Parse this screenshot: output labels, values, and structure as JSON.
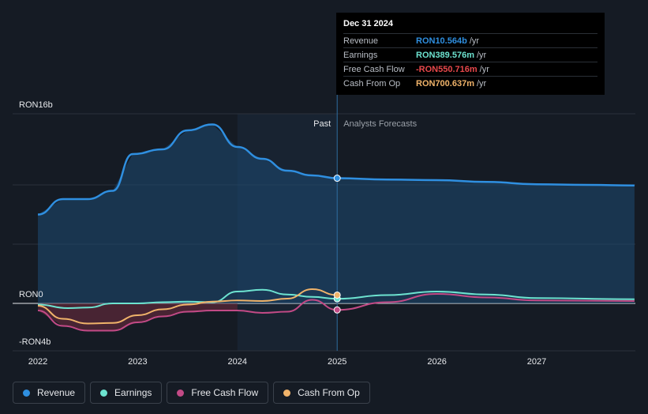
{
  "chart_data": {
    "type": "area",
    "x_axis": {
      "ticks": [
        "2022",
        "2023",
        "2024",
        "2025",
        "2026",
        "2027"
      ],
      "range": [
        2021.78,
        2027.98
      ]
    },
    "y_axis": {
      "ticks": [
        {
          "value": 16,
          "label": "RON16b"
        },
        {
          "value": 0,
          "label": "RON0"
        },
        {
          "value": -4,
          "label": "-RON4b"
        }
      ],
      "range": [
        -4,
        16
      ],
      "unit": "RON b"
    },
    "divider": {
      "x": 2025.0,
      "past_label": "Past",
      "forecast_label": "Analysts Forecasts"
    },
    "highlight_start": 2024.0,
    "series": [
      {
        "name": "Revenue",
        "color": "#2f8fe0",
        "points": [
          [
            2022.0,
            7.5
          ],
          [
            2022.25,
            8.8
          ],
          [
            2022.5,
            8.8
          ],
          [
            2022.75,
            9.5
          ],
          [
            2022.95,
            12.6
          ],
          [
            2023.25,
            13.0
          ],
          [
            2023.5,
            14.6
          ],
          [
            2023.75,
            15.1
          ],
          [
            2024.0,
            13.2
          ],
          [
            2024.25,
            12.2
          ],
          [
            2024.5,
            11.2
          ],
          [
            2024.75,
            10.8
          ],
          [
            2025.0,
            10.564
          ],
          [
            2025.5,
            10.45
          ],
          [
            2026.0,
            10.4
          ],
          [
            2026.5,
            10.25
          ],
          [
            2027.0,
            10.05
          ],
          [
            2027.5,
            10.0
          ],
          [
            2027.98,
            9.95
          ]
        ]
      },
      {
        "name": "Earnings",
        "color": "#6de3d0",
        "points": [
          [
            2022.0,
            -0.1
          ],
          [
            2022.3,
            -0.4
          ],
          [
            2022.5,
            -0.35
          ],
          [
            2022.75,
            0.0
          ],
          [
            2023.0,
            0.0
          ],
          [
            2023.25,
            0.1
          ],
          [
            2023.5,
            0.15
          ],
          [
            2023.75,
            0.1
          ],
          [
            2024.0,
            1.0
          ],
          [
            2024.25,
            1.15
          ],
          [
            2024.5,
            0.75
          ],
          [
            2024.75,
            0.55
          ],
          [
            2025.0,
            0.39
          ],
          [
            2025.5,
            0.7
          ],
          [
            2026.0,
            1.0
          ],
          [
            2026.5,
            0.75
          ],
          [
            2027.0,
            0.45
          ],
          [
            2027.98,
            0.35
          ]
        ]
      },
      {
        "name": "Free Cash Flow",
        "color": "#c24a86",
        "points": [
          [
            2022.0,
            -0.6
          ],
          [
            2022.25,
            -1.9
          ],
          [
            2022.5,
            -2.3
          ],
          [
            2022.75,
            -2.3
          ],
          [
            2023.0,
            -1.6
          ],
          [
            2023.25,
            -1.1
          ],
          [
            2023.5,
            -0.7
          ],
          [
            2023.75,
            -0.6
          ],
          [
            2024.0,
            -0.6
          ],
          [
            2024.25,
            -0.8
          ],
          [
            2024.5,
            -0.7
          ],
          [
            2024.75,
            0.3
          ],
          [
            2025.0,
            -0.551
          ],
          [
            2025.5,
            0.1
          ],
          [
            2026.0,
            0.8
          ],
          [
            2026.5,
            0.5
          ],
          [
            2027.0,
            0.25
          ],
          [
            2027.98,
            0.2
          ]
        ]
      },
      {
        "name": "Cash From Op",
        "color": "#f0b36a",
        "points": [
          [
            2022.0,
            -0.2
          ],
          [
            2022.25,
            -1.3
          ],
          [
            2022.5,
            -1.7
          ],
          [
            2022.75,
            -1.65
          ],
          [
            2023.0,
            -1.0
          ],
          [
            2023.25,
            -0.5
          ],
          [
            2023.5,
            -0.1
          ],
          [
            2023.75,
            0.15
          ],
          [
            2024.0,
            0.25
          ],
          [
            2024.25,
            0.2
          ],
          [
            2024.5,
            0.4
          ],
          [
            2024.75,
            1.2
          ],
          [
            2025.0,
            0.701
          ]
        ]
      }
    ]
  },
  "tooltip": {
    "date": "Dec 31 2024",
    "rows": [
      {
        "label": "Revenue",
        "value": "RON10.564b",
        "unit": "/yr",
        "color": "#2f8fe0"
      },
      {
        "label": "Earnings",
        "value": "RON389.576m",
        "unit": "/yr",
        "color": "#6de3d0"
      },
      {
        "label": "Free Cash Flow",
        "value": "-RON550.716m",
        "unit": "/yr",
        "color": "#e8484b"
      },
      {
        "label": "Cash From Op",
        "value": "RON700.637m",
        "unit": "/yr",
        "color": "#f0b36a"
      }
    ]
  },
  "legend": [
    {
      "label": "Revenue",
      "color": "#2f8fe0"
    },
    {
      "label": "Earnings",
      "color": "#6de3d0"
    },
    {
      "label": "Free Cash Flow",
      "color": "#c24a86"
    },
    {
      "label": "Cash From Op",
      "color": "#f0b36a"
    }
  ]
}
